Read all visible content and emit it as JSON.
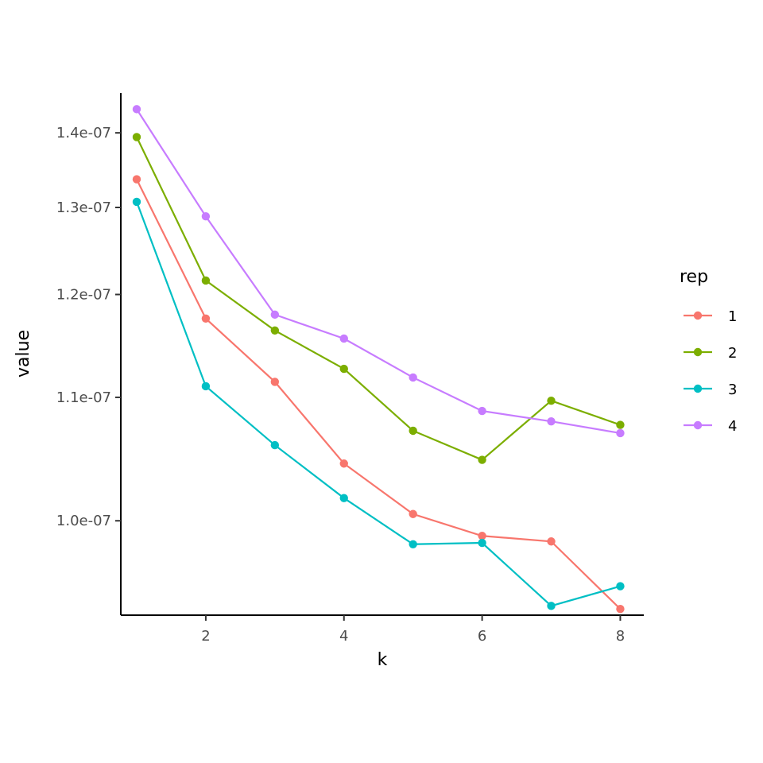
{
  "chart_data": {
    "type": "line",
    "title": "",
    "xlabel": "k",
    "ylabel": "value",
    "x": [
      1,
      2,
      3,
      4,
      5,
      6,
      7,
      8
    ],
    "xticks": [
      "2",
      "4",
      "6",
      "8"
    ],
    "xtick_values": [
      2,
      4,
      6,
      8
    ],
    "yticks": [
      "1.0e-07",
      "1.1e-07",
      "1.2e-07",
      "1.3e-07",
      "1.4e-07"
    ],
    "ytick_values": [
      1e-07,
      1.1e-07,
      1.2e-07,
      1.3e-07,
      1.4e-07
    ],
    "y_scale": "reciprocal",
    "xlim": [
      0.77,
      8.34
    ],
    "ylim": [
      9.35e-08,
      1.46e-07
    ],
    "grid": false,
    "legend": {
      "title": "rep",
      "position": "right"
    },
    "series": [
      {
        "name": "1",
        "color": "#F8766D",
        "values": [
          1.336e-07,
          1.175e-07,
          1.114e-07,
          1.044e-07,
          1.005e-07,
          9.89e-08,
          9.85e-08,
          9.39e-08
        ]
      },
      {
        "name": "2",
        "color": "#7CAE00",
        "values": [
          1.394e-07,
          1.215e-07,
          1.163e-07,
          1.126e-07,
          1.071e-07,
          1.047e-07,
          1.097e-07,
          1.076e-07
        ]
      },
      {
        "name": "3",
        "color": "#00BFC4",
        "values": [
          1.307e-07,
          1.11e-07,
          1.059e-07,
          1.017e-07,
          9.83e-08,
          9.84e-08,
          9.41e-08,
          9.54e-08
        ]
      },
      {
        "name": "4",
        "color": "#C77CFF",
        "values": [
          1.435e-07,
          1.289e-07,
          1.179e-07,
          1.155e-07,
          1.118e-07,
          1.088e-07,
          1.079e-07,
          1.069e-07
        ]
      }
    ]
  }
}
